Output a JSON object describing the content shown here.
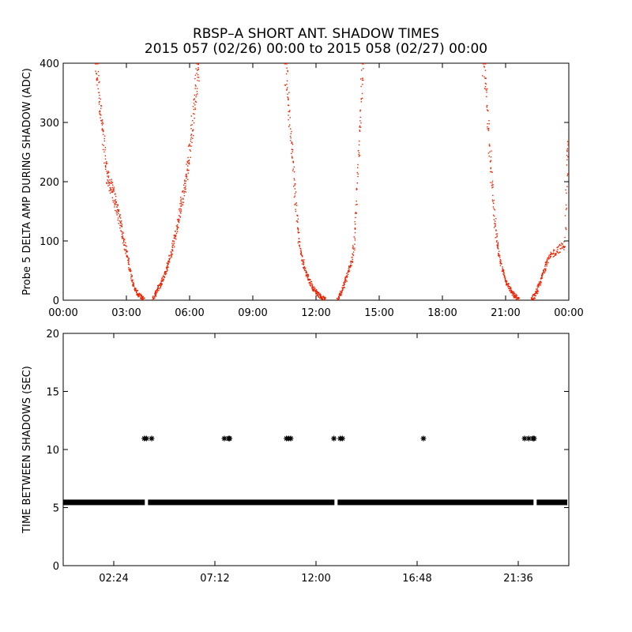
{
  "figure": {
    "title_line1": "RBSP–A SHORT ANT. SHADOW TIMES",
    "title_line2": "2015 057 (02/26) 00:00 to 2015 058 (02/27) 00:00"
  },
  "chart_data": [
    {
      "type": "scatter",
      "ylabel": "Probe 5 DELTA AMP DURING SHADOW (ADC)",
      "xlim_hours": [
        0,
        24
      ],
      "ylim": [
        0,
        400
      ],
      "xticks": [
        {
          "label": "00:00",
          "hour": 0
        },
        {
          "label": "03:00",
          "hour": 3
        },
        {
          "label": "06:00",
          "hour": 6
        },
        {
          "label": "09:00",
          "hour": 9
        },
        {
          "label": "12:00",
          "hour": 12
        },
        {
          "label": "15:00",
          "hour": 15
        },
        {
          "label": "18:00",
          "hour": 18
        },
        {
          "label": "21:00",
          "hour": 21
        },
        {
          "label": "00:00",
          "hour": 24
        }
      ],
      "yticks": [
        0,
        100,
        200,
        300,
        400
      ],
      "marker_color": "#ee2200",
      "series": [
        {
          "points": [
            [
              1.5,
              400
            ],
            [
              1.6,
              380
            ],
            [
              1.7,
              345
            ],
            [
              1.8,
              300
            ],
            [
              1.9,
              265
            ],
            [
              2.0,
              230
            ],
            [
              2.1,
              205
            ],
            [
              2.2,
              195
            ],
            [
              2.3,
              185
            ],
            [
              2.4,
              175
            ],
            [
              2.5,
              160
            ],
            [
              2.6,
              145
            ],
            [
              2.7,
              130
            ],
            [
              2.8,
              112
            ],
            [
              2.9,
              95
            ],
            [
              3.0,
              78
            ],
            [
              3.1,
              60
            ],
            [
              3.2,
              42
            ],
            [
              3.3,
              28
            ],
            [
              3.4,
              18
            ],
            [
              3.5,
              12
            ],
            [
              3.6,
              8
            ],
            [
              3.7,
              5
            ],
            [
              3.8,
              2
            ],
            [
              4.2,
              2
            ],
            [
              4.3,
              8
            ],
            [
              4.4,
              15
            ],
            [
              4.5,
              22
            ],
            [
              4.6,
              28
            ],
            [
              4.7,
              36
            ],
            [
              4.8,
              45
            ],
            [
              4.9,
              55
            ],
            [
              5.0,
              68
            ],
            [
              5.1,
              80
            ],
            [
              5.2,
              95
            ],
            [
              5.3,
              110
            ],
            [
              5.4,
              125
            ],
            [
              5.5,
              145
            ],
            [
              5.6,
              165
            ],
            [
              5.7,
              185
            ],
            [
              5.8,
              205
            ],
            [
              5.9,
              230
            ],
            [
              6.0,
              260
            ],
            [
              6.1,
              295
            ],
            [
              6.2,
              330
            ],
            [
              6.3,
              370
            ],
            [
              6.4,
              400
            ]
          ]
        },
        {
          "points": [
            [
              10.5,
              400
            ],
            [
              10.6,
              370
            ],
            [
              10.7,
              320
            ],
            [
              10.8,
              270
            ],
            [
              10.9,
              220
            ],
            [
              11.0,
              170
            ],
            [
              11.1,
              125
            ],
            [
              11.2,
              95
            ],
            [
              11.3,
              75
            ],
            [
              11.4,
              60
            ],
            [
              11.5,
              48
            ],
            [
              11.6,
              38
            ],
            [
              11.7,
              30
            ],
            [
              11.8,
              24
            ],
            [
              11.9,
              18
            ],
            [
              12.0,
              14
            ],
            [
              12.1,
              10
            ],
            [
              12.2,
              7
            ],
            [
              12.3,
              4
            ],
            [
              12.4,
              2
            ],
            [
              13.0,
              2
            ],
            [
              13.1,
              8
            ],
            [
              13.2,
              16
            ],
            [
              13.3,
              26
            ],
            [
              13.4,
              36
            ],
            [
              13.5,
              48
            ],
            [
              13.6,
              60
            ],
            [
              13.7,
              72
            ],
            [
              13.8,
              100
            ],
            [
              13.9,
              160
            ],
            [
              14.0,
              240
            ],
            [
              14.1,
              320
            ],
            [
              14.2,
              400
            ]
          ]
        },
        {
          "points": [
            [
              19.9,
              400
            ],
            [
              20.0,
              380
            ],
            [
              20.1,
              330
            ],
            [
              20.2,
              270
            ],
            [
              20.3,
              210
            ],
            [
              20.4,
              160
            ],
            [
              20.5,
              120
            ],
            [
              20.6,
              90
            ],
            [
              20.7,
              70
            ],
            [
              20.8,
              55
            ],
            [
              20.9,
              42
            ],
            [
              21.0,
              32
            ],
            [
              21.1,
              25
            ],
            [
              21.2,
              18
            ],
            [
              21.3,
              12
            ],
            [
              21.4,
              8
            ],
            [
              21.5,
              5
            ],
            [
              21.6,
              2
            ],
            [
              22.2,
              2
            ],
            [
              22.3,
              6
            ],
            [
              22.4,
              12
            ],
            [
              22.5,
              20
            ],
            [
              22.6,
              30
            ],
            [
              22.7,
              40
            ],
            [
              22.8,
              52
            ],
            [
              22.9,
              62
            ],
            [
              23.0,
              70
            ],
            [
              23.2,
              78
            ],
            [
              23.4,
              85
            ],
            [
              23.6,
              90
            ],
            [
              23.8,
              95
            ],
            [
              23.9,
              220
            ],
            [
              24.0,
              280
            ]
          ]
        }
      ]
    },
    {
      "type": "scatter",
      "ylabel": "TIME BETWEEN SHADOWS (SEC)",
      "xlim_hours": [
        0,
        24
      ],
      "ylim": [
        0,
        20
      ],
      "xticks": [
        {
          "label": "02:24",
          "hour": 2.4
        },
        {
          "label": "07:12",
          "hour": 7.2
        },
        {
          "label": "12:00",
          "hour": 12.0
        },
        {
          "label": "16:48",
          "hour": 16.8
        },
        {
          "label": "21:36",
          "hour": 21.6
        }
      ],
      "yticks": [
        0,
        5,
        10,
        15,
        20
      ],
      "marker_color": "#000000",
      "baseline_value": 5.45,
      "baseline_gaps_hours": [
        3.95,
        12.95,
        22.4
      ],
      "outliers": [
        [
          3.85,
          10.95
        ],
        [
          3.95,
          10.95
        ],
        [
          4.2,
          10.95
        ],
        [
          7.65,
          10.95
        ],
        [
          7.85,
          10.95
        ],
        [
          7.9,
          10.95
        ],
        [
          10.6,
          10.95
        ],
        [
          10.7,
          10.95
        ],
        [
          10.8,
          10.95
        ],
        [
          12.85,
          10.95
        ],
        [
          13.15,
          10.95
        ],
        [
          13.25,
          10.95
        ],
        [
          17.1,
          10.95
        ],
        [
          21.9,
          10.95
        ],
        [
          22.1,
          10.95
        ],
        [
          22.3,
          10.95
        ],
        [
          22.35,
          10.95
        ]
      ]
    }
  ]
}
